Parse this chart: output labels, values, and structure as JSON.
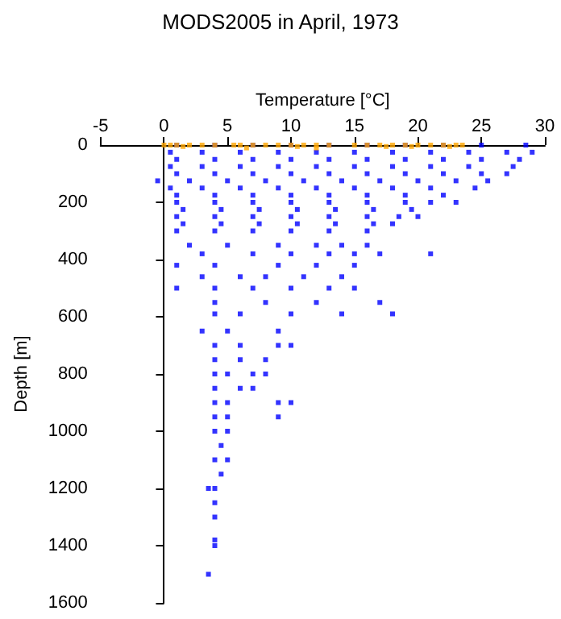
{
  "chart_data": {
    "type": "scatter",
    "title": "MODS2005 in April, 1973",
    "xlabel": "Temperature [°C]",
    "ylabel": "Depth [m]",
    "xlim": [
      -5,
      30
    ],
    "xticks": [
      -5,
      0,
      5,
      10,
      15,
      20,
      25,
      30
    ],
    "ylim": [
      1600,
      0
    ],
    "yticks": [
      0,
      200,
      400,
      600,
      800,
      1000,
      1200,
      1400,
      1600
    ],
    "marker": "square",
    "series": [
      {
        "color": "#0000ff",
        "x": [
          1,
          4,
          7,
          10,
          13,
          16,
          19,
          22,
          25,
          28.5,
          0.5,
          3,
          6,
          9,
          12,
          15,
          18,
          21,
          24,
          27,
          29,
          1,
          4,
          7,
          10,
          13,
          16,
          19,
          22,
          25,
          28,
          0.5,
          3,
          6,
          9,
          12,
          15,
          18,
          21,
          24,
          27.5,
          1,
          4,
          7,
          10,
          13,
          16,
          19,
          22,
          25,
          27,
          -0.5,
          2,
          5,
          8,
          11,
          14,
          17,
          20,
          23,
          25.5,
          0.5,
          3,
          6,
          9,
          12,
          15,
          18,
          21,
          24.5,
          1,
          4,
          7,
          10,
          13,
          16,
          19,
          22,
          1,
          4,
          7,
          10,
          13,
          16,
          19,
          21,
          23,
          1.5,
          4.5,
          7.5,
          10.5,
          13.5,
          16.5,
          19.5,
          1,
          4,
          7,
          10,
          13,
          16,
          18.5,
          20,
          1.5,
          4.5,
          7.5,
          10.5,
          13.5,
          16.5,
          18,
          1,
          4,
          7,
          10,
          13,
          16,
          2,
          5,
          9,
          12,
          14,
          16,
          3,
          7,
          10,
          13,
          15,
          17,
          21,
          1,
          4,
          9,
          12,
          15,
          3,
          6,
          8,
          11,
          14,
          1,
          4,
          7,
          10,
          13,
          15,
          4,
          8,
          12,
          17,
          4,
          6,
          10,
          14,
          18,
          3,
          5,
          9,
          4,
          6,
          9,
          10,
          4,
          6,
          8,
          4,
          5,
          7,
          8,
          4,
          6,
          7,
          4,
          5,
          9,
          10,
          4,
          5,
          9,
          4,
          5,
          4.5,
          4,
          5,
          4.5,
          3.5,
          4,
          4,
          4,
          4,
          4,
          3.5
        ],
        "values": [
          0,
          0,
          0,
          0,
          0,
          0,
          0,
          0,
          0,
          0,
          25,
          25,
          25,
          25,
          25,
          25,
          25,
          25,
          25,
          25,
          25,
          50,
          50,
          50,
          50,
          50,
          50,
          50,
          50,
          50,
          50,
          75,
          75,
          75,
          75,
          75,
          75,
          75,
          75,
          75,
          75,
          100,
          100,
          100,
          100,
          100,
          100,
          100,
          100,
          100,
          100,
          125,
          125,
          125,
          125,
          125,
          125,
          125,
          125,
          125,
          125,
          150,
          150,
          150,
          150,
          150,
          150,
          150,
          150,
          150,
          175,
          175,
          175,
          175,
          175,
          175,
          175,
          175,
          200,
          200,
          200,
          200,
          200,
          200,
          200,
          200,
          200,
          225,
          225,
          225,
          225,
          225,
          225,
          225,
          250,
          250,
          250,
          250,
          250,
          250,
          250,
          250,
          275,
          275,
          275,
          275,
          275,
          275,
          275,
          300,
          300,
          300,
          300,
          300,
          300,
          350,
          350,
          350,
          350,
          350,
          350,
          380,
          380,
          380,
          380,
          380,
          380,
          380,
          420,
          420,
          420,
          420,
          420,
          460,
          460,
          460,
          460,
          460,
          500,
          500,
          500,
          500,
          500,
          500,
          550,
          550,
          550,
          550,
          590,
          590,
          590,
          590,
          590,
          650,
          650,
          650,
          700,
          700,
          700,
          700,
          750,
          750,
          750,
          800,
          800,
          800,
          800,
          850,
          850,
          850,
          900,
          900,
          900,
          900,
          950,
          950,
          950,
          1000,
          1000,
          1050,
          1100,
          1100,
          1150,
          1200,
          1200,
          1250,
          1300,
          1380,
          1400,
          1500
        ]
      },
      {
        "color": "#ffa500",
        "x": [
          0,
          0.5,
          1,
          2,
          3,
          4,
          5.5,
          6,
          7,
          8,
          9,
          10,
          11,
          12,
          13,
          15,
          16,
          17,
          18,
          19,
          20,
          21,
          22,
          23,
          23.5,
          1.5,
          6.5,
          10.5,
          12,
          17.5,
          19.5,
          22.5
        ],
        "values": [
          0,
          0,
          0,
          0,
          0,
          0,
          0,
          0,
          0,
          0,
          0,
          0,
          0,
          0,
          0,
          0,
          0,
          0,
          0,
          0,
          0,
          0,
          0,
          0,
          0,
          5,
          10,
          5,
          10,
          5,
          5,
          5
        ]
      }
    ]
  }
}
